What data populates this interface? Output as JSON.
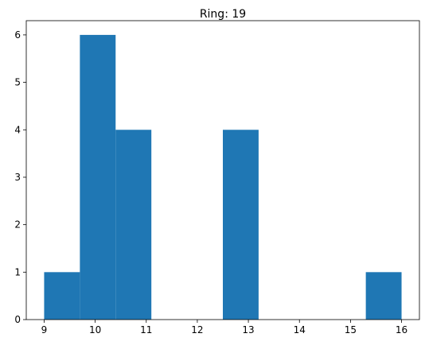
{
  "chart_data": {
    "type": "bar",
    "title": "Ring: 19",
    "xlabel": "",
    "ylabel": "",
    "bins": [
      {
        "start": 9.0,
        "end": 9.7,
        "count": 1
      },
      {
        "start": 9.7,
        "end": 10.4,
        "count": 6
      },
      {
        "start": 10.4,
        "end": 11.1,
        "count": 4
      },
      {
        "start": 11.1,
        "end": 11.8,
        "count": 0
      },
      {
        "start": 11.8,
        "end": 12.5,
        "count": 0
      },
      {
        "start": 12.5,
        "end": 13.2,
        "count": 4
      },
      {
        "start": 13.2,
        "end": 13.9,
        "count": 0
      },
      {
        "start": 13.9,
        "end": 14.6,
        "count": 0
      },
      {
        "start": 14.6,
        "end": 15.3,
        "count": 0
      },
      {
        "start": 15.3,
        "end": 16.0,
        "count": 1
      }
    ],
    "xlim": [
      8.65,
      16.35
    ],
    "ylim": [
      0,
      6.3
    ],
    "xticks": [
      9,
      10,
      11,
      12,
      13,
      14,
      15,
      16
    ],
    "yticks": [
      0,
      1,
      2,
      3,
      4,
      5,
      6
    ],
    "grid": false,
    "bar_color": "#1f77b4"
  }
}
